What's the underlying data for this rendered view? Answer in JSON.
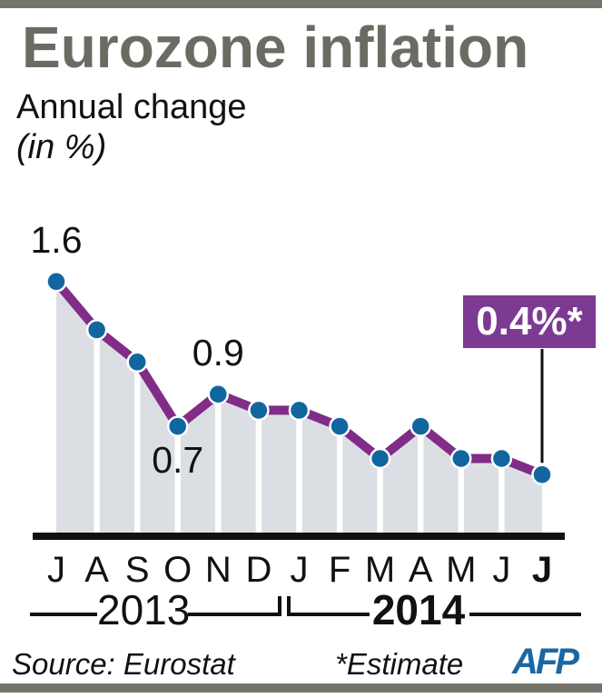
{
  "colors": {
    "top_bottom_bar": "#74746d",
    "title_text": "#6b6b63",
    "body_text": "#111111",
    "afp_blue": "#1a67a3"
  },
  "header": {
    "title": "Eurozone inflation",
    "subtitle": "Annual change",
    "unit_note": "(in %)"
  },
  "chart_data": {
    "type": "line",
    "title": "Eurozone inflation",
    "subtitle": "Annual change (in %)",
    "categories": [
      "J",
      "A",
      "S",
      "O",
      "N",
      "D",
      "J",
      "F",
      "M",
      "A",
      "M",
      "J",
      "J"
    ],
    "values": [
      1.6,
      1.3,
      1.1,
      0.7,
      0.9,
      0.8,
      0.8,
      0.7,
      0.5,
      0.7,
      0.5,
      0.5,
      0.4
    ],
    "last_category_bold": true,
    "ylim": [
      0,
      1.8
    ],
    "grid": false,
    "legend": "none",
    "years": [
      {
        "label": "2013",
        "bold": false,
        "covers_category_indices": [
          0,
          5
        ]
      },
      {
        "label": "2014",
        "bold": true,
        "covers_category_indices": [
          6,
          12
        ]
      }
    ],
    "point_labels": [
      {
        "index": 0,
        "text": "1.6",
        "placement": "above"
      },
      {
        "index": 4,
        "text": "0.9",
        "placement": "above"
      },
      {
        "index": 3,
        "text": "0.7",
        "placement": "below"
      }
    ],
    "callout": {
      "index": 12,
      "text": "0.4%*"
    },
    "colors": {
      "line": "#812c87",
      "marker": "#1266a0",
      "marker_stroke": "#ffffff",
      "area_fill": "#dbdfe4",
      "column_separator": "#ffffff",
      "axis": "#111111",
      "badge_bg": "#7d3a93",
      "badge_text": "#ffffff",
      "callout_line": "#111111"
    }
  },
  "footer": {
    "source": "Source: Eurostat",
    "estimate_note": "*Estimate",
    "logo_text": "AFP"
  }
}
